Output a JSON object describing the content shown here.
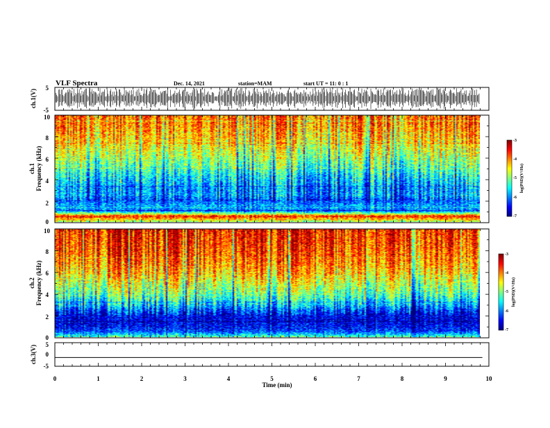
{
  "header": {
    "title": "VLF Spectra",
    "date": "Dec. 14, 2021",
    "station": "station=MAM",
    "start": "start  UT  =   11: 0  : 1"
  },
  "colormap": [
    "#00007f",
    "#0000ff",
    "#0080ff",
    "#00ffff",
    "#80ff80",
    "#ffff00",
    "#ff8000",
    "#ff0000",
    "#800000"
  ],
  "chart_data": [
    {
      "type": "line",
      "panel": "ch1-waveform",
      "ylabel": "ch.1(V)",
      "ylim": [
        -5,
        5
      ],
      "yticks": [
        "5",
        "-5"
      ],
      "xlim": [
        0,
        10
      ],
      "description_values": "dense broadband waveform spanning full range (about -4 to 4 V)"
    },
    {
      "type": "heatmap",
      "panel": "ch1-spectrogram",
      "ylabel_line1": "ch.1",
      "ylabel_line2": "Frequency  (kHz)",
      "ylim": [
        0,
        10
      ],
      "yticks": [
        "0",
        "2",
        "4",
        "6",
        "8",
        "10"
      ],
      "xlim": [
        0,
        9.85
      ],
      "value_range": [
        -7,
        -3
      ],
      "colorbar": {
        "label": "log(PSD)(V²/Hz)",
        "ticks": [
          "-3",
          "-4",
          "-5",
          "-6",
          "-7"
        ]
      },
      "profile": {
        "freq_kHz": [
          0,
          0.5,
          1,
          1.5,
          2,
          2.5,
          3,
          4,
          5,
          6,
          7,
          8,
          9,
          10
        ],
        "log_psd": [
          -4.8,
          -3.5,
          -6.0,
          -5.8,
          -6.2,
          -5.8,
          -5.9,
          -5.6,
          -5.2,
          -4.8,
          -4.5,
          -4.2,
          -4.0,
          -3.9
        ]
      }
    },
    {
      "type": "heatmap",
      "panel": "ch2-spectrogram",
      "ylabel_line1": "ch.2",
      "ylabel_line2": "Frequency  (kHz)",
      "ylim": [
        0,
        10
      ],
      "yticks": [
        "0",
        "2",
        "4",
        "6",
        "8",
        "10"
      ],
      "xlim": [
        0,
        9.85
      ],
      "value_range": [
        -7,
        -3
      ],
      "colorbar": {
        "label": "log(PSD)(V²/Hz)",
        "ticks": [
          "-3",
          "-4",
          "-5",
          "-6",
          "-7"
        ]
      },
      "profile": {
        "freq_kHz": [
          0,
          0.5,
          1,
          1.5,
          2,
          2.5,
          3,
          4,
          5,
          6,
          7,
          8,
          9,
          10
        ],
        "log_psd": [
          -5.2,
          -6.2,
          -6.5,
          -6.6,
          -6.5,
          -6.1,
          -5.6,
          -5.0,
          -4.6,
          -4.2,
          -3.9,
          -3.7,
          -3.6,
          -3.5
        ]
      }
    },
    {
      "type": "line",
      "panel": "ch3-waveform",
      "ylabel": "ch.3(V)",
      "ylim": [
        -5,
        5
      ],
      "yticks": [
        "5",
        "0",
        "-5"
      ],
      "xlim": [
        0,
        10
      ],
      "x": [
        0,
        9.85
      ],
      "y": [
        -1.3,
        -1.3
      ]
    }
  ],
  "xaxis": {
    "label": "Time  (min)",
    "ticks": [
      "0",
      "1",
      "2",
      "3",
      "4",
      "5",
      "6",
      "7",
      "8",
      "9",
      "10"
    ]
  }
}
